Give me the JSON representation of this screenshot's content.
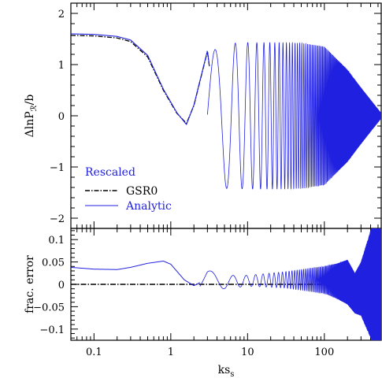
{
  "chart_data": [
    {
      "type": "line",
      "panel": "top",
      "ylabel_main": "ΔlnP",
      "ylabel_sub": "ℛ",
      "ylabel_tail": "/b",
      "xscale": "log",
      "xlim": [
        0.05,
        550
      ],
      "ylim": [
        -2.2,
        2.2
      ],
      "yticks": [
        -2,
        -1,
        0,
        1,
        2
      ],
      "ytick_labels": [
        "−2",
        "−1",
        "0",
        "1",
        "2"
      ],
      "legend": {
        "title": "Rescaled",
        "title_color": "#2020e0",
        "placement": "lower-left",
        "entries": [
          {
            "label": "GSR0",
            "color": "#000000",
            "style": "dash-dot"
          },
          {
            "label": "Analytic",
            "color": "#2020e0",
            "style": "solid"
          }
        ]
      },
      "series": [
        {
          "name": "GSR0",
          "color": "#000000",
          "style": "dash-dot",
          "x": [
            0.05,
            0.1,
            0.2,
            0.3,
            0.5,
            0.8,
            1.2,
            1.6,
            2.0,
            3.0,
            4.0,
            5.0,
            7.0,
            10.0
          ],
          "y": [
            1.57,
            1.56,
            1.52,
            1.45,
            1.15,
            0.5,
            0.05,
            -0.15,
            0.2,
            1.26,
            -0.2,
            -1.4,
            1.35,
            -1.42
          ]
        },
        {
          "name": "Analytic",
          "color": "#2020e0",
          "style": "solid",
          "x": [
            0.05,
            0.1,
            0.2,
            0.3,
            0.5,
            0.8,
            1.2,
            1.6,
            2.0,
            3.0,
            4.0,
            5.0,
            7.0,
            10.0,
            20.0,
            50.0,
            100.0,
            200.0,
            300.0,
            500.0
          ],
          "y_envelope": [
            1.6,
            1.59,
            1.55,
            1.48,
            1.18,
            0.52,
            0.06,
            -0.17,
            0.21,
            1.27,
            -0.2,
            -1.42,
            1.38,
            1.43,
            1.43,
            1.42,
            1.35,
            0.9,
            0.55,
            0.05
          ]
        }
      ]
    },
    {
      "type": "line",
      "panel": "bottom",
      "xlabel_main": "ks",
      "xlabel_sub": "s",
      "ylabel": "frac. error",
      "xscale": "log",
      "xlim": [
        0.05,
        550
      ],
      "ylim": [
        -0.125,
        0.125
      ],
      "xticks": [
        0.1,
        1,
        10,
        100
      ],
      "xtick_labels": [
        "0.1",
        "1",
        "10",
        "100"
      ],
      "yticks": [
        -0.1,
        -0.05,
        0,
        0.05,
        0.1
      ],
      "ytick_labels": [
        "−0.1",
        "−0.05",
        "0",
        "0.05",
        "0.1"
      ],
      "series": [
        {
          "name": "GSR0",
          "color": "#000000",
          "style": "dash-dot",
          "x": [
            0.05,
            550
          ],
          "y": [
            0,
            0
          ]
        },
        {
          "name": "Analytic",
          "color": "#2020e0",
          "style": "solid",
          "x": [
            0.05,
            0.1,
            0.2,
            0.3,
            0.5,
            0.8,
            1.0,
            1.5,
            2.0,
            2.4,
            3.0,
            4.0,
            5.0,
            10.0,
            50.0,
            100.0,
            150.0,
            230.0,
            300.0,
            550.0
          ],
          "y": [
            0.038,
            0.034,
            0.033,
            0.038,
            0.047,
            0.052,
            0.045,
            0.01,
            -0.003,
            0.004,
            0.03,
            -0.01,
            0.02,
            0.015,
            0.025,
            0.035,
            0.045,
            0.03,
            0.02,
            0.12
          ]
        }
      ]
    }
  ]
}
